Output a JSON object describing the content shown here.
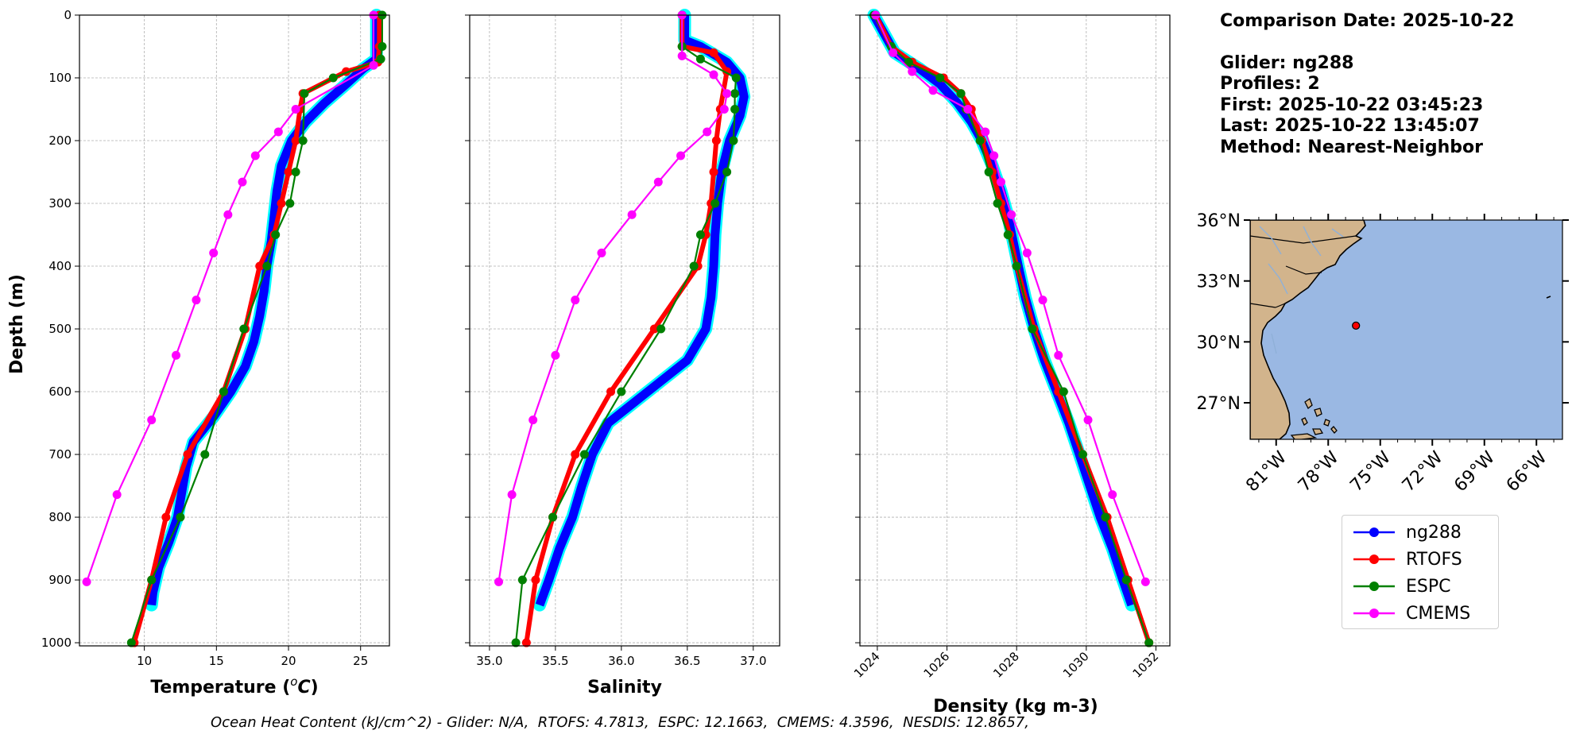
{
  "colors": {
    "ng288": "#0000ff",
    "ng288_halo": "#00ffff",
    "RTOFS": "#ff0000",
    "ESPC": "#008000",
    "CMEMS": "#ff00ff",
    "land": "#d2b48c",
    "ocean": "#9ab8e3",
    "rivers": "#8fb0d8"
  },
  "info": {
    "comparison_date": "Comparison Date: 2025-10-22",
    "glider": "Glider: ng288",
    "profiles": "Profiles: 2",
    "first": "First: 2025-10-22 03:45:23",
    "last": "Last: 2025-10-22 13:45:07",
    "method": "Method: Nearest-Neighbor"
  },
  "footer": "Ocean Heat Content (kJ/cm^2) - Glider: N/A,  RTOFS: 4.7813,  ESPC: 12.1663,  CMEMS: 4.3596,  NESDIS: 12.8657,",
  "legend": [
    "ng288",
    "RTOFS",
    "ESPC",
    "CMEMS"
  ],
  "chart_data": [
    {
      "type": "line",
      "xlabel": "Temperature (°C)",
      "ylabel": "Depth (m)",
      "xlim": [
        5.5,
        27
      ],
      "ylim": [
        1005,
        0
      ],
      "xticks": [
        10,
        15,
        20,
        25
      ],
      "yticks": [
        0,
        100,
        200,
        300,
        400,
        500,
        600,
        700,
        800,
        900,
        1000
      ],
      "grid": true,
      "series": [
        {
          "name": "ng288",
          "points": [
            [
              26.1,
              0
            ],
            [
              26.1,
              40
            ],
            [
              26.1,
              70
            ],
            [
              25.2,
              85
            ],
            [
              24.0,
              110
            ],
            [
              22.5,
              140
            ],
            [
              21.2,
              170
            ],
            [
              20.2,
              200
            ],
            [
              19.5,
              240
            ],
            [
              19.2,
              280
            ],
            [
              19.0,
              320
            ],
            [
              18.8,
              360
            ],
            [
              18.5,
              400
            ],
            [
              18.3,
              440
            ],
            [
              18.0,
              480
            ],
            [
              17.6,
              520
            ],
            [
              17.0,
              560
            ],
            [
              16.0,
              600
            ],
            [
              14.8,
              640
            ],
            [
              13.4,
              680
            ],
            [
              12.9,
              720
            ],
            [
              12.6,
              760
            ],
            [
              12.3,
              800
            ],
            [
              11.7,
              840
            ],
            [
              11.0,
              880
            ],
            [
              10.6,
              920
            ],
            [
              10.5,
              940
            ]
          ]
        },
        {
          "name": "RTOFS",
          "points": [
            [
              26.3,
              0
            ],
            [
              26.3,
              50
            ],
            [
              26.2,
              75
            ],
            [
              24.0,
              90
            ],
            [
              21.0,
              125
            ],
            [
              20.8,
              150
            ],
            [
              20.5,
              200
            ],
            [
              20.0,
              250
            ],
            [
              19.5,
              300
            ],
            [
              19.0,
              350
            ],
            [
              18.0,
              400
            ],
            [
              17.0,
              500
            ],
            [
              15.5,
              600
            ],
            [
              13.0,
              700
            ],
            [
              11.5,
              800
            ],
            [
              10.5,
              900
            ],
            [
              9.3,
              1000
            ]
          ]
        },
        {
          "name": "ESPC",
          "points": [
            [
              26.5,
              0
            ],
            [
              26.5,
              50
            ],
            [
              26.4,
              70
            ],
            [
              23.1,
              100
            ],
            [
              21.1,
              125
            ],
            [
              21.0,
              200
            ],
            [
              20.5,
              250
            ],
            [
              20.1,
              300
            ],
            [
              19.1,
              350
            ],
            [
              18.5,
              400
            ],
            [
              16.9,
              500
            ],
            [
              15.5,
              600
            ],
            [
              14.2,
              700
            ],
            [
              12.5,
              800
            ],
            [
              10.5,
              900
            ],
            [
              9.1,
              1000
            ]
          ]
        },
        {
          "name": "CMEMS",
          "points": [
            [
              25.9,
              0
            ],
            [
              25.9,
              80
            ],
            [
              20.5,
              150
            ],
            [
              19.3,
              186
            ],
            [
              17.7,
              224
            ],
            [
              16.8,
              266
            ],
            [
              15.8,
              318
            ],
            [
              14.8,
              379
            ],
            [
              13.6,
              454
            ],
            [
              12.2,
              542
            ],
            [
              10.5,
              645
            ],
            [
              8.1,
              764
            ],
            [
              6.0,
              903
            ]
          ]
        }
      ]
    },
    {
      "type": "line",
      "xlabel": "Salinity",
      "xlim": [
        34.85,
        37.2
      ],
      "ylim": [
        1005,
        0
      ],
      "xticks": [
        35.0,
        35.5,
        36.0,
        36.5,
        37.0
      ],
      "grid": true,
      "series": [
        {
          "name": "ng288",
          "points": [
            [
              36.48,
              0
            ],
            [
              36.48,
              40
            ],
            [
              36.6,
              50
            ],
            [
              36.8,
              75
            ],
            [
              36.9,
              100
            ],
            [
              36.93,
              130
            ],
            [
              36.9,
              160
            ],
            [
              36.82,
              200
            ],
            [
              36.76,
              250
            ],
            [
              36.73,
              300
            ],
            [
              36.71,
              350
            ],
            [
              36.7,
              400
            ],
            [
              36.68,
              450
            ],
            [
              36.64,
              500
            ],
            [
              36.5,
              550
            ],
            [
              36.2,
              600
            ],
            [
              35.9,
              650
            ],
            [
              35.78,
              700
            ],
            [
              35.7,
              750
            ],
            [
              35.63,
              800
            ],
            [
              35.53,
              850
            ],
            [
              35.45,
              900
            ],
            [
              35.38,
              940
            ]
          ]
        },
        {
          "name": "RTOFS",
          "points": [
            [
              36.46,
              0
            ],
            [
              36.46,
              50
            ],
            [
              36.7,
              60
            ],
            [
              36.8,
              90
            ],
            [
              36.75,
              150
            ],
            [
              36.72,
              200
            ],
            [
              36.7,
              250
            ],
            [
              36.68,
              300
            ],
            [
              36.64,
              350
            ],
            [
              36.58,
              400
            ],
            [
              36.25,
              500
            ],
            [
              35.92,
              600
            ],
            [
              35.65,
              700
            ],
            [
              35.48,
              800
            ],
            [
              35.35,
              900
            ],
            [
              35.28,
              1000
            ]
          ]
        },
        {
          "name": "ESPC",
          "points": [
            [
              36.46,
              0
            ],
            [
              36.46,
              50
            ],
            [
              36.6,
              70
            ],
            [
              36.87,
              100
            ],
            [
              36.86,
              125
            ],
            [
              36.86,
              150
            ],
            [
              36.85,
              200
            ],
            [
              36.8,
              250
            ],
            [
              36.71,
              300
            ],
            [
              36.6,
              350
            ],
            [
              36.55,
              400
            ],
            [
              36.3,
              500
            ],
            [
              36.0,
              600
            ],
            [
              35.72,
              700
            ],
            [
              35.48,
              800
            ],
            [
              35.25,
              900
            ],
            [
              35.2,
              1000
            ]
          ]
        },
        {
          "name": "CMEMS",
          "points": [
            [
              36.46,
              0
            ],
            [
              36.46,
              65
            ],
            [
              36.7,
              95
            ],
            [
              36.8,
              125
            ],
            [
              36.78,
              150
            ],
            [
              36.65,
              186
            ],
            [
              36.45,
              224
            ],
            [
              36.28,
              266
            ],
            [
              36.08,
              318
            ],
            [
              35.85,
              379
            ],
            [
              35.65,
              454
            ],
            [
              35.5,
              542
            ],
            [
              35.33,
              645
            ],
            [
              35.17,
              764
            ],
            [
              35.07,
              903
            ]
          ]
        }
      ]
    },
    {
      "type": "line",
      "xlabel": "Density (kg m-3)",
      "xlim": [
        1023.5,
        1032.4
      ],
      "ylim": [
        1005,
        0
      ],
      "xticks": [
        1024,
        1026,
        1028,
        1030,
        1032
      ],
      "grid": true,
      "series": [
        {
          "name": "ng288",
          "points": [
            [
              1023.9,
              0
            ],
            [
              1024.2,
              30
            ],
            [
              1024.5,
              60
            ],
            [
              1025.2,
              85
            ],
            [
              1025.8,
              110
            ],
            [
              1026.3,
              140
            ],
            [
              1026.7,
              170
            ],
            [
              1027.0,
              200
            ],
            [
              1027.3,
              240
            ],
            [
              1027.55,
              280
            ],
            [
              1027.75,
              320
            ],
            [
              1027.9,
              360
            ],
            [
              1028.05,
              400
            ],
            [
              1028.25,
              450
            ],
            [
              1028.5,
              500
            ],
            [
              1028.8,
              550
            ],
            [
              1029.15,
              600
            ],
            [
              1029.5,
              650
            ],
            [
              1029.8,
              700
            ],
            [
              1030.1,
              750
            ],
            [
              1030.4,
              800
            ],
            [
              1030.75,
              850
            ],
            [
              1031.05,
              900
            ],
            [
              1031.3,
              940
            ]
          ]
        },
        {
          "name": "RTOFS",
          "points": [
            [
              1023.95,
              0
            ],
            [
              1024.4,
              50
            ],
            [
              1025.0,
              75
            ],
            [
              1025.9,
              100
            ],
            [
              1026.4,
              125
            ],
            [
              1026.7,
              150
            ],
            [
              1027.0,
              200
            ],
            [
              1027.3,
              250
            ],
            [
              1027.55,
              300
            ],
            [
              1027.8,
              350
            ],
            [
              1028.0,
              400
            ],
            [
              1028.5,
              500
            ],
            [
              1029.2,
              600
            ],
            [
              1029.9,
              700
            ],
            [
              1030.6,
              800
            ],
            [
              1031.2,
              900
            ],
            [
              1031.8,
              1000
            ]
          ]
        },
        {
          "name": "ESPC",
          "points": [
            [
              1023.9,
              0
            ],
            [
              1024.4,
              50
            ],
            [
              1024.9,
              75
            ],
            [
              1025.8,
              100
            ],
            [
              1026.4,
              125
            ],
            [
              1026.55,
              150
            ],
            [
              1026.95,
              200
            ],
            [
              1027.2,
              250
            ],
            [
              1027.45,
              300
            ],
            [
              1027.75,
              350
            ],
            [
              1028.0,
              400
            ],
            [
              1028.45,
              500
            ],
            [
              1029.35,
              600
            ],
            [
              1029.9,
              700
            ],
            [
              1030.55,
              800
            ],
            [
              1031.15,
              900
            ],
            [
              1031.8,
              1000
            ]
          ]
        },
        {
          "name": "CMEMS",
          "points": [
            [
              1023.95,
              0
            ],
            [
              1024.45,
              60
            ],
            [
              1025.0,
              90
            ],
            [
              1025.6,
              120
            ],
            [
              1026.6,
              150
            ],
            [
              1027.1,
              186
            ],
            [
              1027.35,
              224
            ],
            [
              1027.55,
              266
            ],
            [
              1027.85,
              318
            ],
            [
              1028.3,
              379
            ],
            [
              1028.75,
              454
            ],
            [
              1029.2,
              542
            ],
            [
              1030.05,
              645
            ],
            [
              1030.75,
              764
            ],
            [
              1031.7,
              903
            ]
          ]
        }
      ]
    }
  ],
  "map": {
    "lat_ticks": [
      "36°N",
      "33°N",
      "30°N",
      "27°N"
    ],
    "lat_values": [
      36,
      33,
      30,
      27
    ],
    "lon_ticks": [
      "81°W",
      "78°W",
      "75°W",
      "72°W",
      "69°W",
      "66°W"
    ],
    "lon_values": [
      -81,
      -78,
      -75,
      -72,
      -69,
      -66
    ],
    "extent": {
      "lon": [
        -82.5,
        -64.5
      ],
      "lat": [
        25.2,
        36.0
      ]
    },
    "glider_position": {
      "lon": -76.4,
      "lat": 30.8
    }
  }
}
